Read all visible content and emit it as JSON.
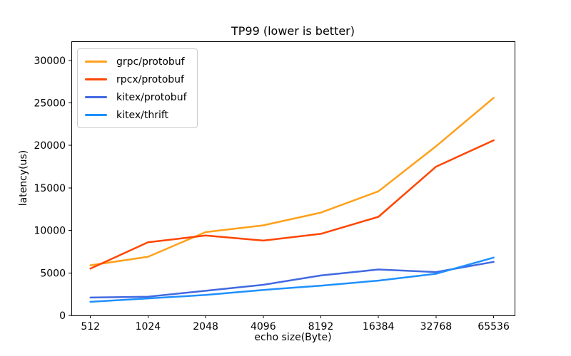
{
  "chart_data": {
    "type": "line",
    "title": "TP99 (lower is better)",
    "xlabel": "echo size(Byte)",
    "ylabel": "latency(us)",
    "categories": [
      "512",
      "1024",
      "2048",
      "4096",
      "8192",
      "16384",
      "32768",
      "65536"
    ],
    "yticks": [
      0,
      5000,
      10000,
      15000,
      20000,
      25000,
      30000
    ],
    "ylim": [
      0,
      32250
    ],
    "grid": false,
    "legend_position": "upper-left",
    "background_color": "#ffffff",
    "axis_color": "#000000",
    "series": [
      {
        "name": "grpc/protobuf",
        "color": "#FFA019",
        "values": [
          5900,
          6900,
          9800,
          10600,
          12100,
          14600,
          19900,
          25600
        ]
      },
      {
        "name": "rpcx/protobuf",
        "color": "#FF4500",
        "values": [
          5500,
          8600,
          9400,
          8800,
          9600,
          11600,
          17500,
          20600
        ]
      },
      {
        "name": "kitex/protobuf",
        "color": "#4169E1",
        "values": [
          2100,
          2200,
          2900,
          3600,
          4700,
          5400,
          5100,
          6300
        ]
      },
      {
        "name": "kitex/thrift",
        "color": "#1E90FF",
        "values": [
          1600,
          2000,
          2400,
          3000,
          3500,
          4100,
          4900,
          6800
        ]
      }
    ]
  }
}
